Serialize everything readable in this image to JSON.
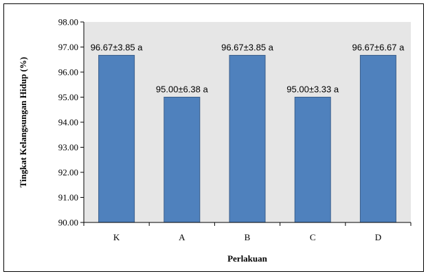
{
  "chart_data": {
    "type": "bar",
    "title": "",
    "xlabel": "Perlakuan",
    "ylabel": "Tingkat Kelangsungan Hidup (%)",
    "ylim": [
      90,
      98
    ],
    "yticks": [
      "90.00",
      "91.00",
      "92.00",
      "93.00",
      "94.00",
      "95.00",
      "96.00",
      "97.00",
      "98.00"
    ],
    "categories": [
      "K",
      "A",
      "B",
      "C",
      "D"
    ],
    "values": [
      96.67,
      95.0,
      96.67,
      95.0,
      96.67
    ],
    "data_labels": [
      "96.67±3.85 a",
      "95.00±6.38 a",
      "96.67±3.85 a",
      "95.00±3.33 a",
      "96.67±6.67 a"
    ],
    "grid": false,
    "legend": "none",
    "colors": {
      "bar_fill": "#4f81bd",
      "bar_stroke": "#385d8a",
      "plot_background": "#e6e6e6"
    }
  }
}
